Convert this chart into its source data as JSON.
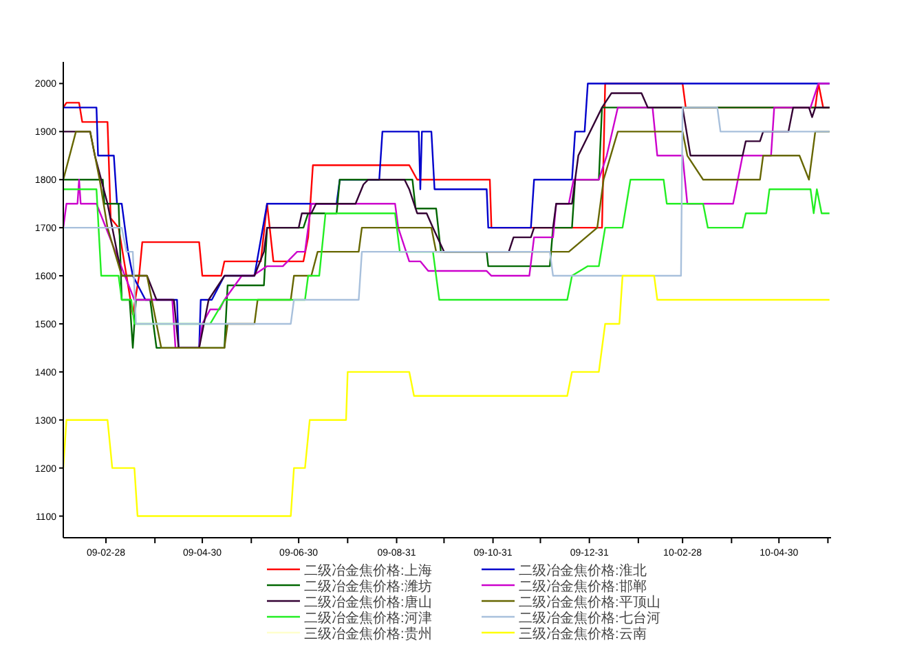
{
  "chart_data": {
    "type": "line",
    "legend": "bottom",
    "marker": "none",
    "line_style": "solid",
    "xlim": [
      "2009-02-01",
      "2010-06-02"
    ],
    "ylim": [
      1055,
      2045
    ],
    "yticks": [
      1100,
      1200,
      1300,
      1400,
      1500,
      1600,
      1700,
      1800,
      1900,
      2000
    ],
    "xticks": [
      {
        "value": "2009-02-28",
        "label": "09-02-28"
      },
      {
        "value": "2009-03-31",
        "label": null
      },
      {
        "value": "2009-04-30",
        "label": "09-04-30"
      },
      {
        "value": "2009-05-31",
        "label": null
      },
      {
        "value": "2009-06-30",
        "label": "09-06-30"
      },
      {
        "value": "2009-07-31",
        "label": null
      },
      {
        "value": "2009-08-31",
        "label": "09-08-31"
      },
      {
        "value": "2009-09-30",
        "label": null
      },
      {
        "value": "2009-10-31",
        "label": "09-10-31"
      },
      {
        "value": "2009-11-30",
        "label": null
      },
      {
        "value": "2009-12-31",
        "label": "09-12-31"
      },
      {
        "value": "2010-01-31",
        "label": null
      },
      {
        "value": "2010-02-28",
        "label": "10-02-28"
      },
      {
        "value": "2010-03-31",
        "label": null
      },
      {
        "value": "2010-04-30",
        "label": "10-04-30"
      },
      {
        "value": "2010-05-31",
        "label": null
      }
    ],
    "series": [
      {
        "name": "二级冶金焦价格:上海",
        "color": "#ff0000",
        "x": [
          "2009-02-01",
          "2009-02-03",
          "2009-02-11",
          "2009-02-13",
          "2009-03-01",
          "2009-03-03",
          "2009-03-08",
          "2009-03-17",
          "2009-03-21",
          "2009-03-23",
          "2009-04-28",
          "2009-04-30",
          "2009-05-12",
          "2009-05-14",
          "2009-06-06",
          "2009-06-10",
          "2009-06-14",
          "2009-07-03",
          "2009-07-06",
          "2009-07-09",
          "2009-09-08",
          "2009-09-13",
          "2009-10-29",
          "2009-10-30",
          "2010-01-08",
          "2010-01-10",
          "2010-02-28",
          "2010-03-02",
          "2010-05-23",
          "2010-05-25",
          "2010-05-28",
          "2010-06-01"
        ],
        "values": [
          1950,
          1960,
          1960,
          1920,
          1920,
          1720,
          1700,
          1520,
          1600,
          1670,
          1670,
          1600,
          1600,
          1630,
          1630,
          1750,
          1630,
          1630,
          1680,
          1830,
          1830,
          1800,
          1800,
          1700,
          1700,
          2000,
          2000,
          1950,
          1950,
          2000,
          1950,
          1950
        ]
      },
      {
        "name": "二级冶金焦价格:淮北",
        "color": "#0000cc",
        "x": [
          "2009-02-01",
          "2009-02-22",
          "2009-02-23",
          "2009-03-05",
          "2009-03-07",
          "2009-03-10",
          "2009-03-14",
          "2009-03-17",
          "2009-03-25",
          "2009-04-14",
          "2009-04-15",
          "2009-04-28",
          "2009-04-29",
          "2009-05-06",
          "2009-05-14",
          "2009-06-02",
          "2009-06-10",
          "2009-07-24",
          "2009-07-26",
          "2009-08-20",
          "2009-08-22",
          "2009-09-14",
          "2009-09-15",
          "2009-09-16",
          "2009-09-22",
          "2009-09-24",
          "2009-10-27",
          "2009-10-28",
          "2009-11-24",
          "2009-11-26",
          "2009-12-20",
          "2009-12-22",
          "2009-12-28",
          "2009-12-30",
          "2010-06-01"
        ],
        "values": [
          1950,
          1950,
          1850,
          1850,
          1750,
          1750,
          1650,
          1600,
          1550,
          1550,
          1450,
          1450,
          1550,
          1550,
          1600,
          1600,
          1750,
          1750,
          1800,
          1800,
          1900,
          1900,
          1780,
          1900,
          1900,
          1780,
          1780,
          1700,
          1700,
          1800,
          1800,
          1900,
          1900,
          2000,
          2000
        ]
      },
      {
        "name": "二级冶金焦价格:潍坊",
        "color": "#006600",
        "x": [
          "2009-02-01",
          "2009-02-26",
          "2009-02-27",
          "2009-03-08",
          "2009-03-10",
          "2009-03-15",
          "2009-03-17",
          "2009-03-19",
          "2009-03-28",
          "2009-04-01",
          "2009-05-14",
          "2009-05-16",
          "2009-06-08",
          "2009-06-10",
          "2009-07-03",
          "2009-07-06",
          "2009-07-24",
          "2009-07-26",
          "2009-09-10",
          "2009-09-12",
          "2009-09-25",
          "2009-09-28",
          "2009-10-27",
          "2009-10-28",
          "2009-12-06",
          "2009-12-08",
          "2009-12-20",
          "2009-12-22",
          "2010-01-06",
          "2010-01-08",
          "2010-06-01"
        ],
        "values": [
          1800,
          1800,
          1750,
          1750,
          1550,
          1550,
          1450,
          1550,
          1550,
          1450,
          1450,
          1580,
          1580,
          1700,
          1700,
          1730,
          1730,
          1800,
          1800,
          1740,
          1740,
          1650,
          1650,
          1620,
          1620,
          1700,
          1700,
          1800,
          1800,
          1950,
          1950
        ]
      },
      {
        "name": "二级冶金焦价格:邯郸",
        "color": "#cc00cc",
        "x": [
          "2009-02-01",
          "2009-02-03",
          "2009-02-10",
          "2009-02-11",
          "2009-02-12",
          "2009-02-22",
          "2009-03-06",
          "2009-03-18",
          "2009-04-11",
          "2009-04-13",
          "2009-04-28",
          "2009-04-30",
          "2009-05-05",
          "2009-05-11",
          "2009-05-14",
          "2009-05-25",
          "2009-06-01",
          "2009-06-10",
          "2009-06-20",
          "2009-06-29",
          "2009-07-04",
          "2009-07-08",
          "2009-08-30",
          "2009-09-01",
          "2009-09-08",
          "2009-09-15",
          "2009-09-20",
          "2009-10-27",
          "2009-10-30",
          "2009-11-23",
          "2009-11-26",
          "2009-12-08",
          "2009-12-10",
          "2009-12-18",
          "2009-12-21",
          "2010-01-06",
          "2010-01-11",
          "2010-01-18",
          "2010-02-09",
          "2010-02-12",
          "2010-02-28",
          "2010-03-03",
          "2010-04-01",
          "2010-04-07",
          "2010-04-25",
          "2010-04-27",
          "2010-05-20",
          "2010-05-25",
          "2010-06-01"
        ],
        "values": [
          1700,
          1750,
          1750,
          1800,
          1750,
          1750,
          1650,
          1550,
          1550,
          1450,
          1450,
          1500,
          1530,
          1530,
          1550,
          1600,
          1600,
          1620,
          1620,
          1650,
          1650,
          1750,
          1750,
          1700,
          1630,
          1630,
          1610,
          1610,
          1600,
          1600,
          1680,
          1680,
          1750,
          1750,
          1800,
          1800,
          1850,
          1950,
          1950,
          1850,
          1850,
          1750,
          1750,
          1850,
          1850,
          1950,
          1950,
          2000,
          2000
        ]
      },
      {
        "name": "二级冶金焦价格:唐山",
        "color": "#330033",
        "x": [
          "2009-02-01",
          "2009-02-18",
          "2009-02-21",
          "2009-03-01",
          "2009-03-10",
          "2009-03-26",
          "2009-04-01",
          "2009-04-12",
          "2009-04-15",
          "2009-04-28",
          "2009-05-04",
          "2009-05-14",
          "2009-06-02",
          "2009-06-08",
          "2009-06-10",
          "2009-06-30",
          "2009-07-02",
          "2009-07-08",
          "2009-07-11",
          "2009-08-05",
          "2009-08-10",
          "2009-08-13",
          "2009-09-05",
          "2009-09-08",
          "2009-09-13",
          "2009-09-19",
          "2009-09-23",
          "2009-09-30",
          "2009-11-10",
          "2009-11-13",
          "2009-11-24",
          "2009-11-26",
          "2009-12-08",
          "2009-12-10",
          "2009-12-20",
          "2009-12-24",
          "2010-01-08",
          "2010-01-14",
          "2010-02-02",
          "2010-02-06",
          "2010-02-28",
          "2010-03-05",
          "2010-04-07",
          "2010-04-09",
          "2010-04-18",
          "2010-04-20",
          "2010-05-06",
          "2010-05-09",
          "2010-05-19",
          "2010-05-21",
          "2010-05-23",
          "2010-06-01"
        ],
        "values": [
          1900,
          1900,
          1850,
          1750,
          1600,
          1600,
          1550,
          1550,
          1450,
          1450,
          1550,
          1600,
          1600,
          1650,
          1700,
          1700,
          1730,
          1730,
          1750,
          1750,
          1790,
          1800,
          1800,
          1780,
          1730,
          1730,
          1700,
          1650,
          1650,
          1680,
          1680,
          1700,
          1700,
          1750,
          1750,
          1850,
          1950,
          1980,
          1980,
          1950,
          1950,
          1850,
          1850,
          1880,
          1880,
          1900,
          1900,
          1950,
          1950,
          1930,
          1950,
          1950
        ]
      },
      {
        "name": "二级冶金焦价格:平顶山",
        "color": "#666600",
        "x": [
          "2009-02-01",
          "2009-02-09",
          "2009-02-18",
          "2009-02-21",
          "2009-02-24",
          "2009-03-01",
          "2009-03-10",
          "2009-03-26",
          "2009-03-29",
          "2009-04-04",
          "2009-05-14",
          "2009-05-16",
          "2009-06-02",
          "2009-06-04",
          "2009-06-25",
          "2009-06-27",
          "2009-07-08",
          "2009-07-12",
          "2009-08-07",
          "2009-08-09",
          "2009-09-22",
          "2009-09-25",
          "2009-12-18",
          "2010-01-05",
          "2010-01-09",
          "2010-01-18",
          "2010-02-28",
          "2010-03-03",
          "2010-03-13",
          "2010-04-18",
          "2010-04-20",
          "2010-05-13",
          "2010-05-19",
          "2010-05-23",
          "2010-06-01"
        ],
        "values": [
          1800,
          1900,
          1900,
          1850,
          1800,
          1700,
          1600,
          1600,
          1550,
          1450,
          1450,
          1500,
          1500,
          1550,
          1550,
          1600,
          1600,
          1650,
          1650,
          1700,
          1700,
          1650,
          1650,
          1700,
          1800,
          1900,
          1900,
          1850,
          1800,
          1800,
          1850,
          1850,
          1800,
          1900,
          1900
        ]
      },
      {
        "name": "二级冶金焦价格:河津",
        "color": "#22ee22",
        "x": [
          "2009-02-01",
          "2009-02-22",
          "2009-02-25",
          "2009-03-08",
          "2009-03-10",
          "2009-03-16",
          "2009-03-18",
          "2009-05-05",
          "2009-05-14",
          "2009-07-04",
          "2009-07-06",
          "2009-07-13",
          "2009-07-17",
          "2009-08-30",
          "2009-09-02",
          "2009-09-23",
          "2009-09-27",
          "2009-12-17",
          "2009-12-20",
          "2009-12-30",
          "2010-01-06",
          "2010-01-10",
          "2010-01-21",
          "2010-01-26",
          "2010-02-16",
          "2010-02-18",
          "2010-03-13",
          "2010-03-16",
          "2010-04-07",
          "2010-04-09",
          "2010-04-22",
          "2010-04-24",
          "2010-05-20",
          "2010-05-22",
          "2010-05-24",
          "2010-05-27",
          "2010-06-01"
        ],
        "values": [
          1780,
          1780,
          1600,
          1600,
          1550,
          1550,
          1500,
          1500,
          1550,
          1550,
          1600,
          1600,
          1730,
          1730,
          1650,
          1650,
          1550,
          1550,
          1600,
          1620,
          1620,
          1700,
          1700,
          1800,
          1800,
          1750,
          1750,
          1700,
          1700,
          1730,
          1730,
          1780,
          1780,
          1730,
          1780,
          1730,
          1730
        ]
      },
      {
        "name": "二级冶金焦价格:七台河",
        "color": "#a8c0dc",
        "x": [
          "2009-02-01",
          "2009-03-10",
          "2009-03-13",
          "2009-03-17",
          "2009-03-19",
          "2009-06-25",
          "2009-06-27",
          "2009-08-07",
          "2009-08-09",
          "2009-12-06",
          "2009-12-08",
          "2010-02-27",
          "2010-02-28",
          "2010-03-22",
          "2010-03-24",
          "2010-06-01"
        ],
        "values": [
          1700,
          1700,
          1650,
          1650,
          1500,
          1500,
          1550,
          1550,
          1650,
          1650,
          1600,
          1600,
          1950,
          1950,
          1900,
          1900
        ]
      },
      {
        "name": "三级冶金焦价格:贵州",
        "color": "#ffffcc"
      },
      {
        "name": "三级冶金焦价格:云南",
        "color": "#ffff00",
        "x": [
          "2009-02-01",
          "2009-02-03",
          "2009-03-01",
          "2009-03-04",
          "2009-03-18",
          "2009-03-20",
          "2009-06-25",
          "2009-06-27",
          "2009-07-04",
          "2009-07-07",
          "2009-07-30",
          "2009-07-31",
          "2009-09-08",
          "2009-09-11",
          "2009-12-17",
          "2009-12-20",
          "2010-01-06",
          "2010-01-10",
          "2010-01-19",
          "2010-01-21",
          "2010-02-10",
          "2010-02-12",
          "2010-06-01"
        ],
        "values": [
          1200,
          1300,
          1300,
          1200,
          1200,
          1100,
          1100,
          1200,
          1200,
          1300,
          1300,
          1400,
          1400,
          1350,
          1350,
          1400,
          1400,
          1500,
          1500,
          1600,
          1600,
          1550,
          1550
        ]
      }
    ]
  }
}
